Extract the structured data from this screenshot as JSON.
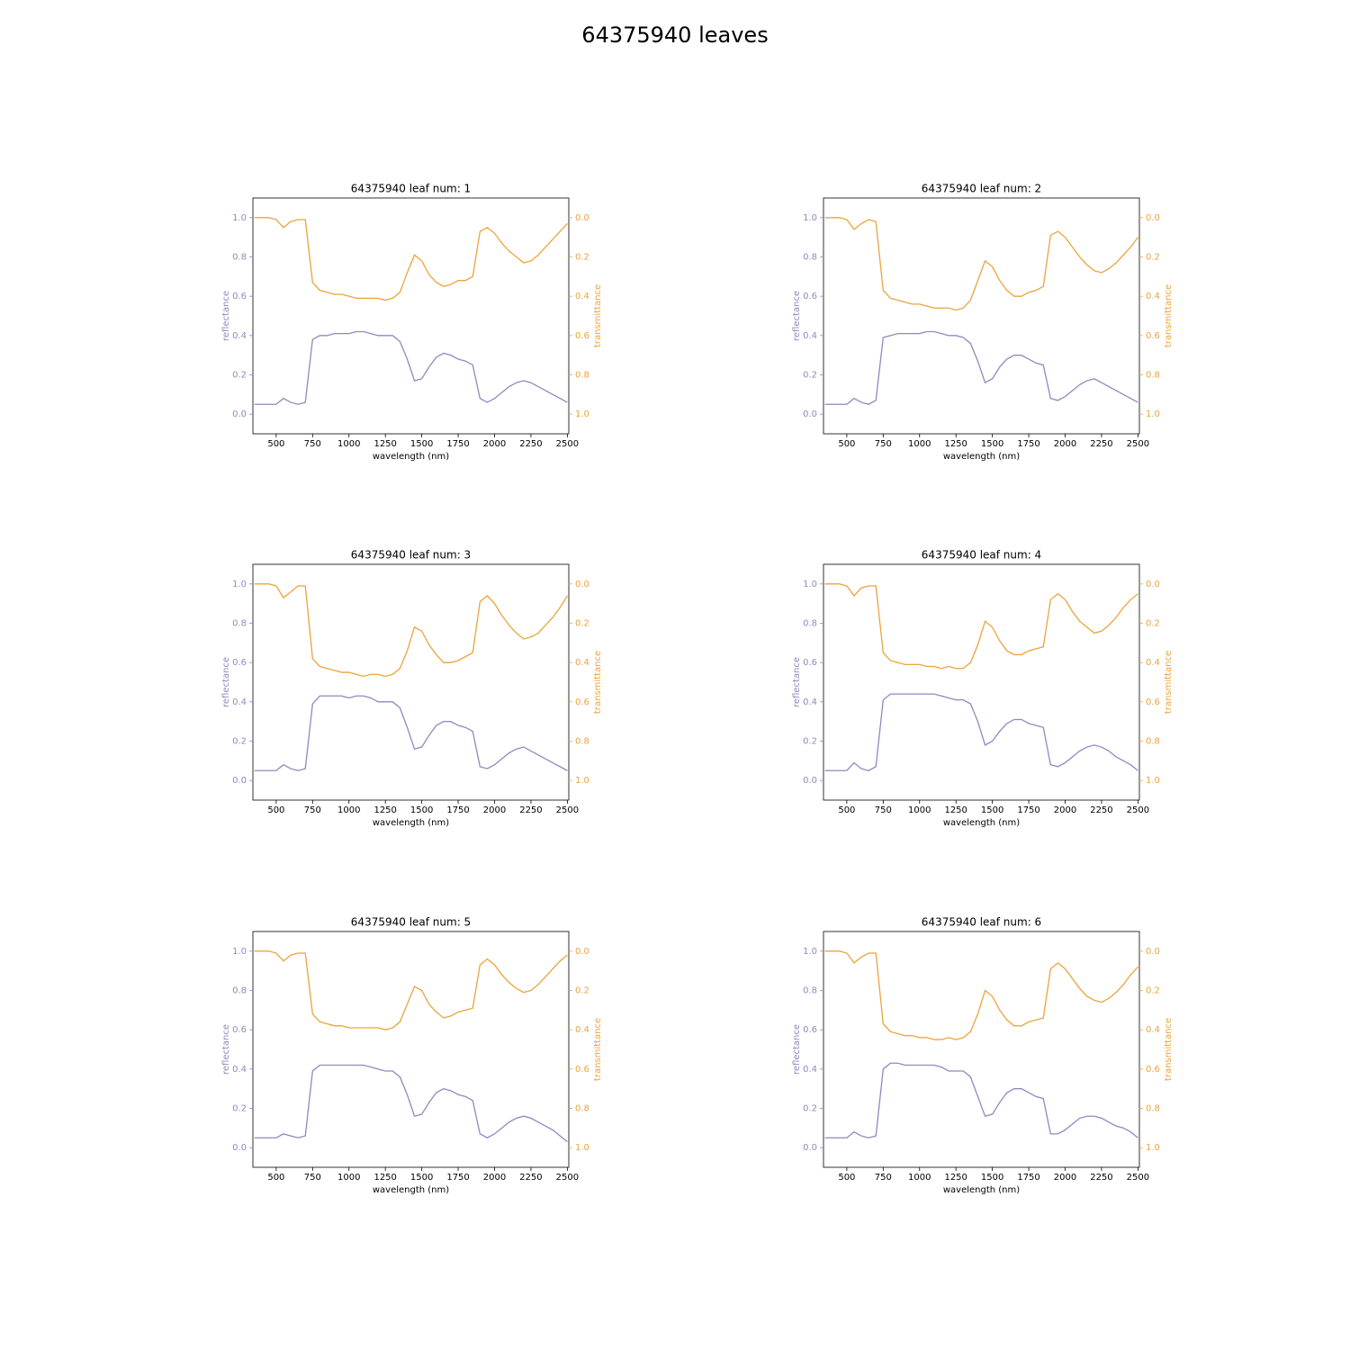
{
  "title": "64375940 leaves",
  "chart_data": [
    {
      "type": "line",
      "title": "64375940 leaf num: 1",
      "xlabel": "wavelength (nm)",
      "ylabel": "reflectance",
      "y2label": "transmittance",
      "x": [
        350,
        400,
        450,
        500,
        550,
        600,
        650,
        700,
        750,
        800,
        850,
        900,
        950,
        1000,
        1050,
        1100,
        1150,
        1200,
        1250,
        1300,
        1350,
        1400,
        1450,
        1500,
        1550,
        1600,
        1650,
        1700,
        1750,
        1800,
        1850,
        1900,
        1950,
        2000,
        2050,
        2100,
        2150,
        2200,
        2250,
        2300,
        2350,
        2400,
        2450,
        2500
      ],
      "series": [
        {
          "color": "#8e89c0",
          "values": [
            0.05,
            0.05,
            0.05,
            0.05,
            0.08,
            0.06,
            0.05,
            0.06,
            0.38,
            0.4,
            0.4,
            0.41,
            0.41,
            0.41,
            0.42,
            0.42,
            0.41,
            0.4,
            0.4,
            0.4,
            0.37,
            0.28,
            0.17,
            0.18,
            0.24,
            0.29,
            0.31,
            0.3,
            0.28,
            0.27,
            0.25,
            0.08,
            0.06,
            0.08,
            0.11,
            0.14,
            0.16,
            0.17,
            0.16,
            0.14,
            0.12,
            0.1,
            0.08,
            0.06
          ]
        },
        {
          "color": "#eba33c",
          "axis": "y2",
          "values": [
            0.0,
            0.0,
            0.0,
            0.01,
            0.05,
            0.02,
            0.01,
            0.01,
            0.33,
            0.37,
            0.38,
            0.39,
            0.39,
            0.4,
            0.41,
            0.41,
            0.41,
            0.41,
            0.42,
            0.41,
            0.38,
            0.28,
            0.19,
            0.22,
            0.29,
            0.33,
            0.35,
            0.34,
            0.32,
            0.32,
            0.3,
            0.07,
            0.05,
            0.08,
            0.13,
            0.17,
            0.2,
            0.23,
            0.22,
            0.19,
            0.15,
            0.11,
            0.07,
            0.03
          ]
        }
      ],
      "xlim": [
        340,
        2510
      ],
      "xticks": [
        500,
        750,
        1000,
        1250,
        1500,
        1750,
        2000,
        2250,
        2500
      ],
      "ylim": [
        -0.1,
        1.1
      ],
      "yticks": [
        {
          "value": 0,
          "label": "0.0"
        },
        0.2,
        0.4,
        0.6,
        0.8,
        {
          "value": 1,
          "label": "1.0"
        }
      ],
      "y2lim": [
        1.1,
        -0.1
      ],
      "y2ticks": [
        {
          "value": 0,
          "label": "0.0"
        },
        0.2,
        0.4,
        0.6,
        0.8,
        {
          "value": 1,
          "label": "1.0"
        }
      ]
    },
    {
      "type": "line",
      "title": "64375940 leaf num: 2",
      "xlabel": "wavelength (nm)",
      "ylabel": "reflectance",
      "y2label": "transmittance",
      "x": [
        350,
        400,
        450,
        500,
        550,
        600,
        650,
        700,
        750,
        800,
        850,
        900,
        950,
        1000,
        1050,
        1100,
        1150,
        1200,
        1250,
        1300,
        1350,
        1400,
        1450,
        1500,
        1550,
        1600,
        1650,
        1700,
        1750,
        1800,
        1850,
        1900,
        1950,
        2000,
        2050,
        2100,
        2150,
        2200,
        2250,
        2300,
        2350,
        2400,
        2450,
        2500
      ],
      "series": [
        {
          "color": "#8e89c0",
          "values": [
            0.05,
            0.05,
            0.05,
            0.05,
            0.08,
            0.06,
            0.05,
            0.07,
            0.39,
            0.4,
            0.41,
            0.41,
            0.41,
            0.41,
            0.42,
            0.42,
            0.41,
            0.4,
            0.4,
            0.39,
            0.36,
            0.27,
            0.16,
            0.18,
            0.24,
            0.28,
            0.3,
            0.3,
            0.28,
            0.26,
            0.25,
            0.08,
            0.07,
            0.09,
            0.12,
            0.15,
            0.17,
            0.18,
            0.16,
            0.14,
            0.12,
            0.1,
            0.08,
            0.06
          ]
        },
        {
          "color": "#eba33c",
          "axis": "y2",
          "values": [
            0.0,
            0.0,
            0.0,
            0.01,
            0.06,
            0.03,
            0.01,
            0.02,
            0.37,
            0.41,
            0.42,
            0.43,
            0.44,
            0.44,
            0.45,
            0.46,
            0.46,
            0.46,
            0.47,
            0.46,
            0.42,
            0.32,
            0.22,
            0.25,
            0.32,
            0.37,
            0.4,
            0.4,
            0.38,
            0.37,
            0.35,
            0.09,
            0.07,
            0.1,
            0.15,
            0.2,
            0.24,
            0.27,
            0.28,
            0.26,
            0.23,
            0.19,
            0.15,
            0.1
          ]
        }
      ],
      "xlim": [
        340,
        2510
      ],
      "xticks": [
        500,
        750,
        1000,
        1250,
        1500,
        1750,
        2000,
        2250,
        2500
      ],
      "ylim": [
        -0.1,
        1.1
      ],
      "yticks": [
        {
          "value": 0,
          "label": "0.0"
        },
        0.2,
        0.4,
        0.6,
        0.8,
        {
          "value": 1,
          "label": "1.0"
        }
      ],
      "y2lim": [
        1.1,
        -0.1
      ],
      "y2ticks": [
        {
          "value": 0,
          "label": "0.0"
        },
        0.2,
        0.4,
        0.6,
        0.8,
        {
          "value": 1,
          "label": "1.0"
        }
      ]
    },
    {
      "type": "line",
      "title": "64375940 leaf num: 3",
      "xlabel": "wavelength (nm)",
      "ylabel": "reflectance",
      "y2label": "transmittance",
      "x": [
        350,
        400,
        450,
        500,
        550,
        600,
        650,
        700,
        750,
        800,
        850,
        900,
        950,
        1000,
        1050,
        1100,
        1150,
        1200,
        1250,
        1300,
        1350,
        1400,
        1450,
        1500,
        1550,
        1600,
        1650,
        1700,
        1750,
        1800,
        1850,
        1900,
        1950,
        2000,
        2050,
        2100,
        2150,
        2200,
        2250,
        2300,
        2350,
        2400,
        2450,
        2500
      ],
      "series": [
        {
          "color": "#8e89c0",
          "values": [
            0.05,
            0.05,
            0.05,
            0.05,
            0.08,
            0.06,
            0.05,
            0.06,
            0.39,
            0.43,
            0.43,
            0.43,
            0.43,
            0.42,
            0.43,
            0.43,
            0.42,
            0.4,
            0.4,
            0.4,
            0.37,
            0.27,
            0.16,
            0.17,
            0.23,
            0.28,
            0.3,
            0.3,
            0.28,
            0.27,
            0.25,
            0.07,
            0.06,
            0.08,
            0.11,
            0.14,
            0.16,
            0.17,
            0.15,
            0.13,
            0.11,
            0.09,
            0.07,
            0.05
          ]
        },
        {
          "color": "#eba33c",
          "axis": "y2",
          "values": [
            0.0,
            0.0,
            0.0,
            0.01,
            0.07,
            0.04,
            0.01,
            0.01,
            0.38,
            0.42,
            0.43,
            0.44,
            0.45,
            0.45,
            0.46,
            0.47,
            0.46,
            0.46,
            0.47,
            0.46,
            0.43,
            0.34,
            0.22,
            0.24,
            0.31,
            0.36,
            0.4,
            0.4,
            0.39,
            0.37,
            0.35,
            0.09,
            0.06,
            0.1,
            0.16,
            0.21,
            0.25,
            0.28,
            0.27,
            0.25,
            0.21,
            0.17,
            0.12,
            0.06
          ]
        }
      ],
      "xlim": [
        340,
        2510
      ],
      "xticks": [
        500,
        750,
        1000,
        1250,
        1500,
        1750,
        2000,
        2250,
        2500
      ],
      "ylim": [
        -0.1,
        1.1
      ],
      "yticks": [
        {
          "value": 0,
          "label": "0.0"
        },
        0.2,
        0.4,
        0.6,
        0.8,
        {
          "value": 1,
          "label": "1.0"
        }
      ],
      "y2lim": [
        1.1,
        -0.1
      ],
      "y2ticks": [
        {
          "value": 0,
          "label": "0.0"
        },
        0.2,
        0.4,
        0.6,
        0.8,
        {
          "value": 1,
          "label": "1.0"
        }
      ]
    },
    {
      "type": "line",
      "title": "64375940 leaf num: 4",
      "xlabel": "wavelength (nm)",
      "ylabel": "reflectance",
      "y2label": "transmittance",
      "x": [
        350,
        400,
        450,
        500,
        550,
        600,
        650,
        700,
        750,
        800,
        850,
        900,
        950,
        1000,
        1050,
        1100,
        1150,
        1200,
        1250,
        1300,
        1350,
        1400,
        1450,
        1500,
        1550,
        1600,
        1650,
        1700,
        1750,
        1800,
        1850,
        1900,
        1950,
        2000,
        2050,
        2100,
        2150,
        2200,
        2250,
        2300,
        2350,
        2400,
        2450,
        2500
      ],
      "series": [
        {
          "color": "#8e89c0",
          "values": [
            0.05,
            0.05,
            0.05,
            0.05,
            0.09,
            0.06,
            0.05,
            0.07,
            0.41,
            0.44,
            0.44,
            0.44,
            0.44,
            0.44,
            0.44,
            0.44,
            0.43,
            0.42,
            0.41,
            0.41,
            0.39,
            0.3,
            0.18,
            0.2,
            0.25,
            0.29,
            0.31,
            0.31,
            0.29,
            0.28,
            0.27,
            0.08,
            0.07,
            0.09,
            0.12,
            0.15,
            0.17,
            0.18,
            0.17,
            0.15,
            0.12,
            0.1,
            0.08,
            0.05
          ]
        },
        {
          "color": "#eba33c",
          "axis": "y2",
          "values": [
            0.0,
            0.0,
            0.0,
            0.01,
            0.06,
            0.02,
            0.01,
            0.01,
            0.35,
            0.39,
            0.4,
            0.41,
            0.41,
            0.41,
            0.42,
            0.42,
            0.43,
            0.42,
            0.43,
            0.43,
            0.4,
            0.31,
            0.19,
            0.22,
            0.29,
            0.34,
            0.36,
            0.36,
            0.34,
            0.33,
            0.32,
            0.08,
            0.05,
            0.08,
            0.14,
            0.19,
            0.22,
            0.25,
            0.24,
            0.21,
            0.17,
            0.12,
            0.08,
            0.05
          ]
        }
      ],
      "xlim": [
        340,
        2510
      ],
      "xticks": [
        500,
        750,
        1000,
        1250,
        1500,
        1750,
        2000,
        2250,
        2500
      ],
      "ylim": [
        -0.1,
        1.1
      ],
      "yticks": [
        {
          "value": 0,
          "label": "0.0"
        },
        0.2,
        0.4,
        0.6,
        0.8,
        {
          "value": 1,
          "label": "1.0"
        }
      ],
      "y2lim": [
        1.1,
        -0.1
      ],
      "y2ticks": [
        {
          "value": 0,
          "label": "0.0"
        },
        0.2,
        0.4,
        0.6,
        0.8,
        {
          "value": 1,
          "label": "1.0"
        }
      ]
    },
    {
      "type": "line",
      "title": "64375940 leaf num: 5",
      "xlabel": "wavelength (nm)",
      "ylabel": "reflectance",
      "y2label": "transmittance",
      "x": [
        350,
        400,
        450,
        500,
        550,
        600,
        650,
        700,
        750,
        800,
        850,
        900,
        950,
        1000,
        1050,
        1100,
        1150,
        1200,
        1250,
        1300,
        1350,
        1400,
        1450,
        1500,
        1550,
        1600,
        1650,
        1700,
        1750,
        1800,
        1850,
        1900,
        1950,
        2000,
        2050,
        2100,
        2150,
        2200,
        2250,
        2300,
        2350,
        2400,
        2450,
        2500
      ],
      "series": [
        {
          "color": "#8e89c0",
          "values": [
            0.05,
            0.05,
            0.05,
            0.05,
            0.07,
            0.06,
            0.05,
            0.06,
            0.39,
            0.42,
            0.42,
            0.42,
            0.42,
            0.42,
            0.42,
            0.42,
            0.41,
            0.4,
            0.39,
            0.39,
            0.36,
            0.27,
            0.16,
            0.17,
            0.23,
            0.28,
            0.3,
            0.29,
            0.27,
            0.26,
            0.24,
            0.07,
            0.05,
            0.07,
            0.1,
            0.13,
            0.15,
            0.16,
            0.15,
            0.13,
            0.11,
            0.09,
            0.06,
            0.03
          ]
        },
        {
          "color": "#eba33c",
          "axis": "y2",
          "values": [
            0.0,
            0.0,
            0.0,
            0.01,
            0.05,
            0.02,
            0.01,
            0.01,
            0.32,
            0.36,
            0.37,
            0.38,
            0.38,
            0.39,
            0.39,
            0.39,
            0.39,
            0.39,
            0.4,
            0.39,
            0.36,
            0.27,
            0.18,
            0.2,
            0.27,
            0.31,
            0.34,
            0.33,
            0.31,
            0.3,
            0.29,
            0.07,
            0.04,
            0.07,
            0.12,
            0.16,
            0.19,
            0.21,
            0.2,
            0.17,
            0.13,
            0.09,
            0.05,
            0.02
          ]
        }
      ],
      "xlim": [
        340,
        2510
      ],
      "xticks": [
        500,
        750,
        1000,
        1250,
        1500,
        1750,
        2000,
        2250,
        2500
      ],
      "ylim": [
        -0.1,
        1.1
      ],
      "yticks": [
        {
          "value": 0,
          "label": "0.0"
        },
        0.2,
        0.4,
        0.6,
        0.8,
        {
          "value": 1,
          "label": "1.0"
        }
      ],
      "y2lim": [
        1.1,
        -0.1
      ],
      "y2ticks": [
        {
          "value": 0,
          "label": "0.0"
        },
        0.2,
        0.4,
        0.6,
        0.8,
        {
          "value": 1,
          "label": "1.0"
        }
      ]
    },
    {
      "type": "line",
      "title": "64375940 leaf num: 6",
      "xlabel": "wavelength (nm)",
      "ylabel": "reflectance",
      "y2label": "transmittance",
      "x": [
        350,
        400,
        450,
        500,
        550,
        600,
        650,
        700,
        750,
        800,
        850,
        900,
        950,
        1000,
        1050,
        1100,
        1150,
        1200,
        1250,
        1300,
        1350,
        1400,
        1450,
        1500,
        1550,
        1600,
        1650,
        1700,
        1750,
        1800,
        1850,
        1900,
        1950,
        2000,
        2050,
        2100,
        2150,
        2200,
        2250,
        2300,
        2350,
        2400,
        2450,
        2500
      ],
      "series": [
        {
          "color": "#8e89c0",
          "values": [
            0.05,
            0.05,
            0.05,
            0.05,
            0.08,
            0.06,
            0.05,
            0.06,
            0.4,
            0.43,
            0.43,
            0.42,
            0.42,
            0.42,
            0.42,
            0.42,
            0.41,
            0.39,
            0.39,
            0.39,
            0.36,
            0.26,
            0.16,
            0.17,
            0.23,
            0.28,
            0.3,
            0.3,
            0.28,
            0.26,
            0.25,
            0.07,
            0.07,
            0.09,
            0.12,
            0.15,
            0.16,
            0.16,
            0.15,
            0.13,
            0.11,
            0.1,
            0.08,
            0.05
          ]
        },
        {
          "color": "#eba33c",
          "axis": "y2",
          "values": [
            0.0,
            0.0,
            0.0,
            0.01,
            0.06,
            0.03,
            0.01,
            0.01,
            0.37,
            0.41,
            0.42,
            0.43,
            0.43,
            0.44,
            0.44,
            0.45,
            0.45,
            0.44,
            0.45,
            0.44,
            0.41,
            0.32,
            0.2,
            0.23,
            0.3,
            0.35,
            0.38,
            0.38,
            0.36,
            0.35,
            0.34,
            0.09,
            0.06,
            0.09,
            0.14,
            0.19,
            0.23,
            0.25,
            0.26,
            0.24,
            0.21,
            0.17,
            0.12,
            0.08
          ]
        }
      ],
      "xlim": [
        340,
        2510
      ],
      "xticks": [
        500,
        750,
        1000,
        1250,
        1500,
        1750,
        2000,
        2250,
        2500
      ],
      "ylim": [
        -0.1,
        1.1
      ],
      "yticks": [
        {
          "value": 0,
          "label": "0.0"
        },
        0.2,
        0.4,
        0.6,
        0.8,
        {
          "value": 1,
          "label": "1.0"
        }
      ],
      "y2lim": [
        1.1,
        -0.1
      ],
      "y2ticks": [
        {
          "value": 0,
          "label": "0.0"
        },
        0.2,
        0.4,
        0.6,
        0.8,
        {
          "value": 1,
          "label": "1.0"
        }
      ]
    }
  ]
}
